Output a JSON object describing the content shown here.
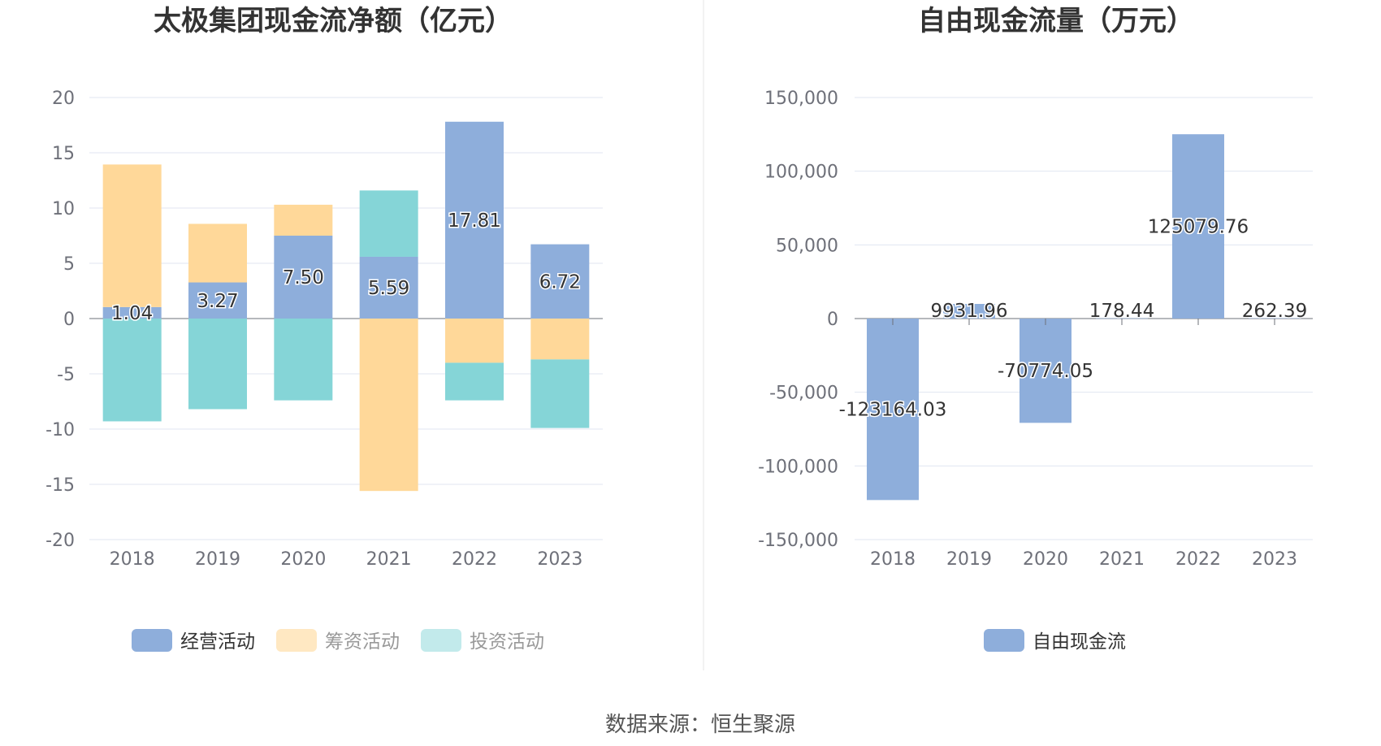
{
  "source": "数据来源：恒生聚源",
  "colors": {
    "operating": "#8eaedb",
    "financing": "#ffd899",
    "investing": "#85d5d7",
    "free_cash_flow": "#8eaedb",
    "legend_financing": "#ffe8c2",
    "legend_investing": "#c2eaeb"
  },
  "chart_data": [
    {
      "type": "bar",
      "stacked": true,
      "title": "太极集团现金流净额（亿元）",
      "categories": [
        "2018",
        "2019",
        "2020",
        "2021",
        "2022",
        "2023"
      ],
      "ylim": [
        -20,
        20
      ],
      "yticks": [
        "20",
        "15",
        "10",
        "5",
        "0",
        "-5",
        "-10",
        "-15",
        "-20"
      ],
      "ytick_values": [
        20,
        15,
        10,
        5,
        0,
        -5,
        -10,
        -15,
        -20
      ],
      "grid": true,
      "legend_position": "bottom",
      "series": [
        {
          "name": "经营活动",
          "values": [
            1.04,
            3.27,
            7.5,
            5.59,
            17.81,
            6.72
          ],
          "labels": [
            "1.04",
            "3.27",
            "7.50",
            "5.59",
            "17.81",
            "6.72"
          ]
        },
        {
          "name": "筹资活动",
          "values": [
            12.9,
            5.3,
            2.8,
            -15.6,
            -4.0,
            -3.7
          ]
        },
        {
          "name": "投资活动",
          "values": [
            -9.3,
            -8.2,
            -7.4,
            6.0,
            -3.4,
            -6.2
          ]
        }
      ]
    },
    {
      "type": "bar",
      "title": "自由现金流量（万元）",
      "categories": [
        "2018",
        "2019",
        "2020",
        "2021",
        "2022",
        "2023"
      ],
      "ylim": [
        -150000,
        150000
      ],
      "yticks": [
        "150,000",
        "100,000",
        "50,000",
        "0",
        "-50,000",
        "-100,000",
        "-150,000"
      ],
      "ytick_values": [
        150000,
        100000,
        50000,
        0,
        -50000,
        -100000,
        -150000
      ],
      "grid": true,
      "legend_position": "bottom",
      "series": [
        {
          "name": "自由现金流",
          "values": [
            -123164.03,
            9931.96,
            -70774.05,
            178.44,
            125079.76,
            262.39
          ],
          "labels": [
            "-123164.03",
            "9931.96",
            "-70774.05",
            "178.44",
            "125079.76",
            "262.39"
          ]
        }
      ]
    }
  ]
}
